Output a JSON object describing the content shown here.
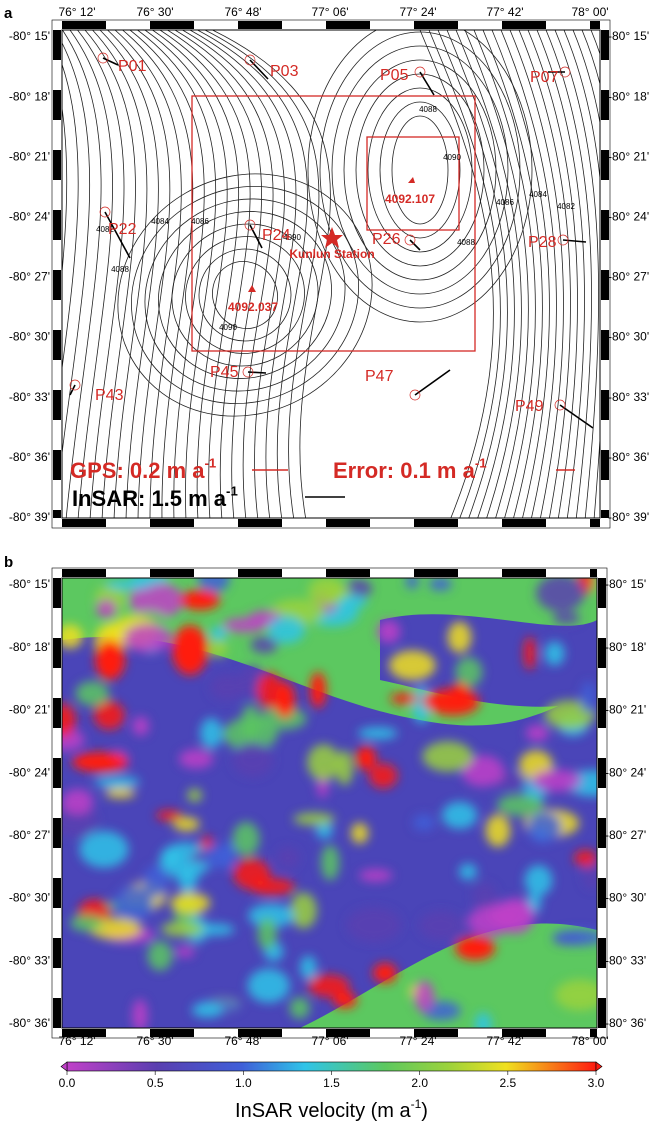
{
  "panel_a": {
    "label": "a",
    "lon_labels": [
      "76° 12'",
      "76° 30'",
      "76° 48'",
      "77° 06'",
      "77° 24'",
      "77° 42'",
      "78° 00'"
    ],
    "lat_labels": [
      "-80° 15'",
      "-80° 18'",
      "-80° 21'",
      "-80° 24'",
      "-80° 27'",
      "-80° 30'",
      "-80° 33'",
      "-80° 36'",
      "-80° 39'"
    ],
    "stations": [
      "P01",
      "P03",
      "P05",
      "P07",
      "P22",
      "P24",
      "P26",
      "P28",
      "P43",
      "P45",
      "P47",
      "P49"
    ],
    "contour_labels": [
      "4082",
      "4084",
      "4086",
      "4088",
      "4090",
      "4090",
      "4088",
      "4090",
      "4088",
      "4086",
      "4084",
      "4082"
    ],
    "spot_heights": [
      "4092.107",
      "4092.037"
    ],
    "station_name": "Kunlun Station",
    "legend": [
      {
        "text": "GPS: 0.2 m a",
        "sup": "-1"
      },
      {
        "text": "Error: 0.1 m a",
        "sup": "-1"
      },
      {
        "text": "InSAR: 1.5 m a",
        "sup": "-1"
      }
    ]
  },
  "panel_b": {
    "label": "b",
    "lon_labels": [
      "76° 12'",
      "76° 30'",
      "76° 48'",
      "77° 06'",
      "77° 24'",
      "77° 42'",
      "78° 00'"
    ],
    "lat_labels": [
      "-80° 15'",
      "-80° 18'",
      "-80° 21'",
      "-80° 24'",
      "-80° 27'",
      "-80° 30'",
      "-80° 33'",
      "-80° 36'"
    ],
    "colorbar": {
      "title": "InSAR velocity (m a",
      "title_sup": "-1",
      "title_end": ")",
      "clim": [
        0,
        3
      ],
      "ticks": [
        {
          "value": 0,
          "label": "0.0"
        },
        {
          "value": 0.5,
          "label": "0.5"
        },
        {
          "value": 1,
          "label": "1.0"
        },
        {
          "value": 1.5,
          "label": "1.5"
        },
        {
          "value": 2,
          "label": "2.0"
        },
        {
          "value": 2.5,
          "label": "2.5"
        },
        {
          "value": 3,
          "label": "3.0"
        }
      ]
    }
  }
}
